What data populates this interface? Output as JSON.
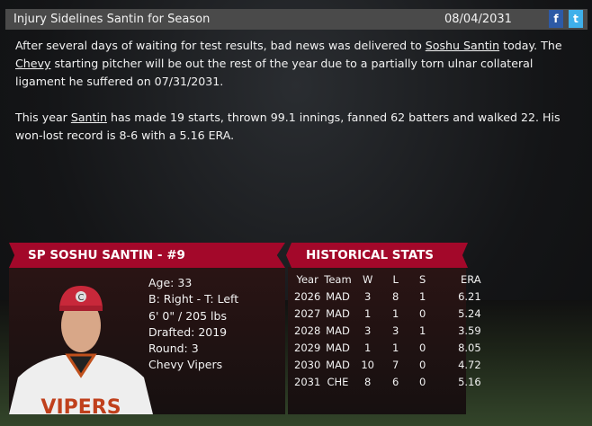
{
  "header": {
    "title": "Injury Sidelines Santin for Season",
    "date": "08/04/2031",
    "facebook_icon": "facebook-icon",
    "twitter_icon": "twitter-icon"
  },
  "article": {
    "p1_a": "After several days of waiting for test results, bad news was delivered to ",
    "p1_link1": "Soshu Santin",
    "p1_b": " today. The ",
    "p1_link2": "Chevy",
    "p1_c": " starting pitcher will be out the rest of the year due to a partially torn ulnar collateral ligament he suffered on 07/31/2031.",
    "p2_a": "This year ",
    "p2_link": "Santin",
    "p2_b": " has made 19 starts, thrown 99.1 innings, fanned 62 batters and walked 22. His won-lost record is 8-6 with a 5.16 ERA."
  },
  "player": {
    "banner": "SP SOSHU SANTIN - #9",
    "age": "Age: 33",
    "bats_throws": "B: Right - T: Left",
    "size": "6' 0\" / 205 lbs",
    "drafted": "Drafted: 2019",
    "round": "Round: 3",
    "team": "Chevy Vipers",
    "jersey_text": "VIPERS",
    "cap_letter": "C"
  },
  "stats": {
    "banner": "HISTORICAL STATS",
    "columns": [
      "Year",
      "Team",
      "W",
      "L",
      "S",
      "ERA"
    ],
    "rows": [
      [
        "2026",
        "MAD",
        "3",
        "8",
        "1",
        "6.21"
      ],
      [
        "2027",
        "MAD",
        "1",
        "1",
        "0",
        "5.24"
      ],
      [
        "2028",
        "MAD",
        "3",
        "3",
        "1",
        "3.59"
      ],
      [
        "2029",
        "MAD",
        "1",
        "1",
        "0",
        "8.05"
      ],
      [
        "2030",
        "MAD",
        "10",
        "7",
        "0",
        "4.72"
      ],
      [
        "2031",
        "CHE",
        "8",
        "6",
        "0",
        "5.16"
      ]
    ]
  },
  "colors": {
    "banner": "#a3082a",
    "header": "#4a4a4a"
  }
}
